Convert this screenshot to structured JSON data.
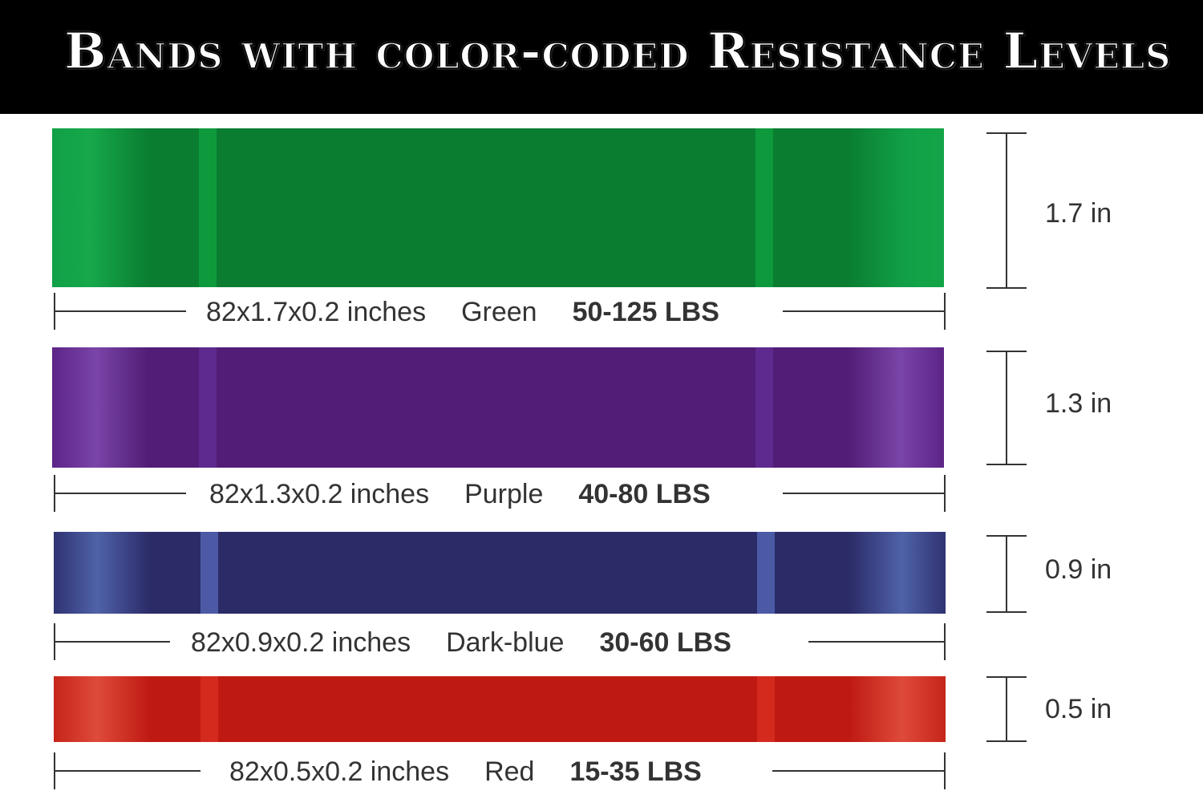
{
  "title": "Bands with color-coded Resistance Levels",
  "bands": [
    {
      "size": "82x1.7x0.2 inches",
      "color_name": "Green",
      "resistance": "50-125 LBS",
      "width_label": "1.7 in",
      "base_color": "#0a7d31",
      "edge_color": "#16a84a",
      "strap_color": "#0e9a3c"
    },
    {
      "size": "82x1.3x0.2 inches",
      "color_name": "Purple",
      "resistance": "40-80 LBS",
      "width_label": "1.3 in",
      "base_color": "#511d76",
      "edge_color": "#7a45a8",
      "strap_color": "#5e2a90"
    },
    {
      "size": "82x0.9x0.2 inches",
      "color_name": "Dark-blue",
      "resistance": "30-60 LBS",
      "width_label": "0.9 in",
      "base_color": "#2b2b68",
      "edge_color": "#4f62a8",
      "strap_color": "#4c5aa6"
    },
    {
      "size": "82x0.5x0.2 inches",
      "color_name": "Red",
      "resistance": "15-35 LBS",
      "width_label": "0.5 in",
      "base_color": "#bf1a12",
      "edge_color": "#de4a3a",
      "strap_color": "#d42a1e"
    }
  ]
}
